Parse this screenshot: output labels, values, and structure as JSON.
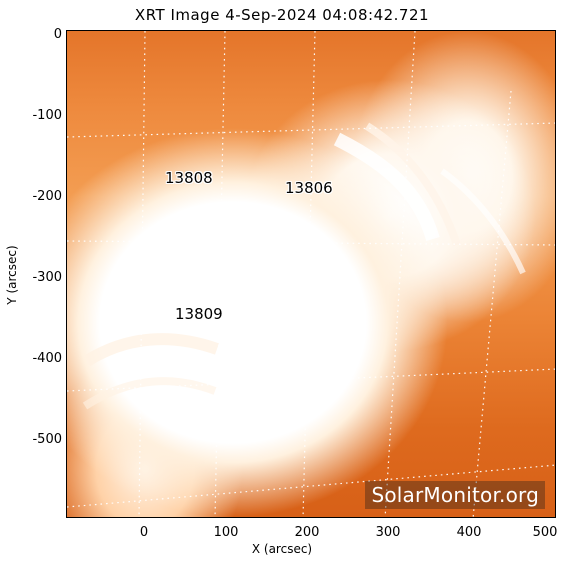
{
  "title": "XRT Image   4-Sep-2024 04:08:42.721",
  "x_axis": {
    "label": "X (arcsec)",
    "ticks": [
      "0",
      "100",
      "200",
      "300",
      "400",
      "500"
    ]
  },
  "y_axis": {
    "label": "Y (arcsec)",
    "ticks": [
      "0",
      "-100",
      "-200",
      "-300",
      "-400",
      "-500"
    ]
  },
  "active_regions": [
    "13808",
    "13806",
    "13809"
  ],
  "watermark": "SolarMonitor.org",
  "colors": {
    "dark_corona": "#de6a1e",
    "mid_corona": "#f39d52",
    "bright_corona": "#ffffff"
  }
}
